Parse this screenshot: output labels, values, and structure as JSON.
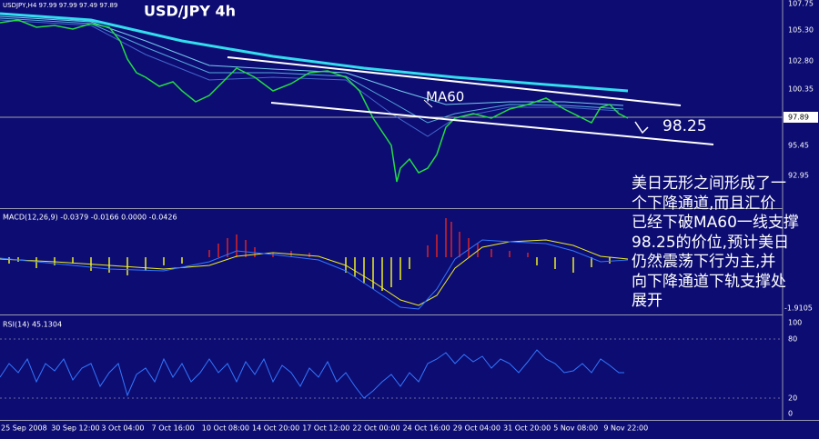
{
  "header": {
    "symbol_info": "USDJPY,H4  97.99 97.99 97.49 97.89",
    "title": "USD/JPY 4h"
  },
  "annotations": {
    "ma_label": "MA60",
    "level_label": "98.25"
  },
  "price_axis": [
    "107.75",
    "105.30",
    "102.80",
    "100.35",
    "97.89",
    "95.45",
    "92.95"
  ],
  "macd": {
    "label": "MACD(12,26,9) -0.0379 -0.0166 0.0000 -0.0426",
    "axis": [
      "-1.9105"
    ]
  },
  "rsi": {
    "label": "RSI(14) 45.1304",
    "axis": [
      "100",
      "80",
      "20",
      "0"
    ]
  },
  "time_axis": [
    "25 Sep 2008",
    "30 Sep 12:00",
    "3 Oct 04:00",
    "7 Oct 16:00",
    "10 Oct 08:00",
    "14 Oct 20:00",
    "17 Oct 12:00",
    "22 Oct 00:00",
    "24 Oct 16:00",
    "29 Oct 04:00",
    "31 Oct 20:00",
    "5 Nov 08:00",
    "9 Nov 22:00"
  ],
  "commentary": [
    "美日无形之间形成了一",
    "个下降通道,而且汇价",
    "已经下破MA60一线支撑",
    "98.25的价位,预计美日",
    "仍然震荡下行为主,并",
    "向下降通道下轨支撑处",
    "展开"
  ]
}
